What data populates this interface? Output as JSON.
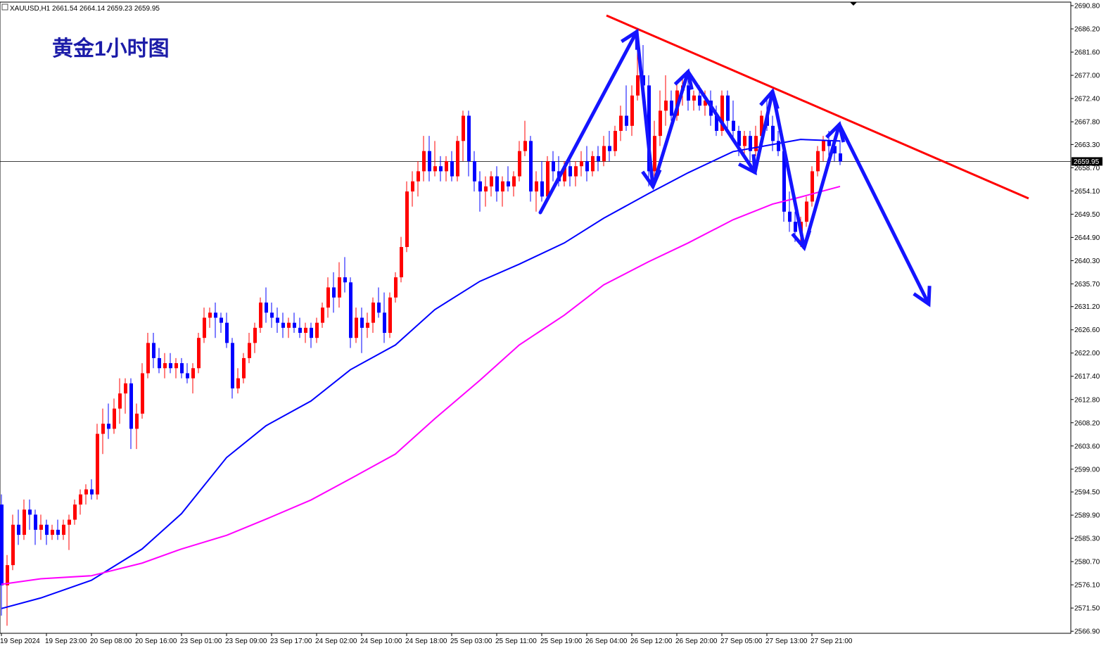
{
  "chart_data": {
    "type": "candlestick",
    "symbol": "XAUUSD,H1",
    "title": "黄金1小时图",
    "up_color": "#ff0000",
    "down_color": "#0000ff",
    "price_line": true,
    "ylim": [
      2566.5,
      2691.5
    ],
    "yticks": [
      {
        "value": 2690.8,
        "label": "2690.80"
      },
      {
        "value": 2686.2,
        "label": "2686.20"
      },
      {
        "value": 2681.6,
        "label": "2681.60"
      },
      {
        "value": 2677.0,
        "label": "2677.00"
      },
      {
        "value": 2672.4,
        "label": "2672.40"
      },
      {
        "value": 2667.8,
        "label": "2667.80"
      },
      {
        "value": 2663.3,
        "label": "2663.30"
      },
      {
        "value": 2658.7,
        "label": "2658.70"
      },
      {
        "value": 2654.1,
        "label": "2654.10"
      },
      {
        "value": 2649.5,
        "label": "2649.50"
      },
      {
        "value": 2644.9,
        "label": "2644.90"
      },
      {
        "value": 2640.3,
        "label": "2640.30"
      },
      {
        "value": 2635.7,
        "label": "2635.70"
      },
      {
        "value": 2631.2,
        "label": "2631.20"
      },
      {
        "value": 2626.6,
        "label": "2626.60"
      },
      {
        "value": 2622.0,
        "label": "2622.00"
      },
      {
        "value": 2617.4,
        "label": "2617.40"
      },
      {
        "value": 2612.8,
        "label": "2612.80"
      },
      {
        "value": 2608.2,
        "label": "2608.20"
      },
      {
        "value": 2603.6,
        "label": "2603.60"
      },
      {
        "value": 2599.0,
        "label": "2599.00"
      },
      {
        "value": 2594.5,
        "label": "2594.50"
      },
      {
        "value": 2589.9,
        "label": "2589.90"
      },
      {
        "value": 2585.3,
        "label": "2585.30"
      },
      {
        "value": 2580.7,
        "label": "2580.70"
      },
      {
        "value": 2576.1,
        "label": "2576.10"
      },
      {
        "value": 2571.5,
        "label": "2571.50"
      },
      {
        "value": 2566.9,
        "label": "2566.90"
      }
    ],
    "categories": [
      "19 Sep 2024",
      null,
      null,
      null,
      null,
      null,
      null,
      null,
      "19 Sep 23:00",
      null,
      null,
      null,
      null,
      null,
      null,
      null,
      "20 Sep 08:00",
      null,
      null,
      null,
      null,
      null,
      null,
      null,
      "20 Sep 16:00",
      null,
      null,
      null,
      null,
      null,
      null,
      null,
      "23 Sep 01:00",
      null,
      null,
      null,
      null,
      null,
      null,
      null,
      "23 Sep 09:00",
      null,
      null,
      null,
      null,
      null,
      null,
      null,
      "23 Sep 17:00",
      null,
      null,
      null,
      null,
      null,
      null,
      null,
      "24 Sep 02:00",
      null,
      null,
      null,
      null,
      null,
      null,
      null,
      "24 Sep 10:00",
      null,
      null,
      null,
      null,
      null,
      null,
      null,
      "24 Sep 18:00",
      null,
      null,
      null,
      null,
      null,
      null,
      null,
      "25 Sep 03:00",
      null,
      null,
      null,
      null,
      null,
      null,
      null,
      "25 Sep 11:00",
      null,
      null,
      null,
      null,
      null,
      null,
      null,
      "25 Sep 19:00",
      null,
      null,
      null,
      null,
      null,
      null,
      null,
      "26 Sep 04:00",
      null,
      null,
      null,
      null,
      null,
      null,
      null,
      "26 Sep 12:00",
      null,
      null,
      null,
      null,
      null,
      null,
      null,
      "26 Sep 20:00",
      null,
      null,
      null,
      null,
      null,
      null,
      null,
      "27 Sep 05:00",
      null,
      null,
      null,
      null,
      null,
      null,
      null,
      "27 Sep 13:00",
      null,
      null,
      null,
      null,
      null,
      null,
      null,
      "27 Sep 21:00",
      null,
      null,
      null,
      null,
      null
    ],
    "ohlc": [
      [
        2592,
        2594,
        2570,
        2576
      ],
      [
        2576,
        2582,
        2568,
        2580
      ],
      [
        2580,
        2590,
        2579,
        2588
      ],
      [
        2588,
        2591,
        2584,
        2586
      ],
      [
        2586,
        2593,
        2585,
        2591
      ],
      [
        2591,
        2593,
        2587,
        2590
      ],
      [
        2590,
        2591,
        2584,
        2587
      ],
      [
        2587,
        2590,
        2585,
        2588
      ],
      [
        2588,
        2589,
        2584,
        2586
      ],
      [
        2586,
        2588,
        2585,
        2587
      ],
      [
        2587,
        2589,
        2585,
        2586
      ],
      [
        2586,
        2589,
        2585,
        2588
      ],
      [
        2588,
        2590,
        2583,
        2589
      ],
      [
        2589,
        2593,
        2588,
        2592
      ],
      [
        2592,
        2595,
        2590,
        2594
      ],
      [
        2594,
        2596,
        2592,
        2595
      ],
      [
        2595,
        2597,
        2593,
        2594
      ],
      [
        2594,
        2608,
        2593,
        2606
      ],
      [
        2606,
        2611,
        2602,
        2608
      ],
      [
        2608,
        2612,
        2605,
        2607
      ],
      [
        2607,
        2613,
        2606,
        2611
      ],
      [
        2611,
        2617,
        2608,
        2614
      ],
      [
        2614,
        2617,
        2610,
        2616
      ],
      [
        2616,
        2617,
        2603,
        2607
      ],
      [
        2607,
        2612,
        2603,
        2610
      ],
      [
        2610,
        2620,
        2609,
        2618
      ],
      [
        2618,
        2626,
        2617,
        2624
      ],
      [
        2624,
        2626,
        2619,
        2621
      ],
      [
        2621,
        2623,
        2618,
        2619
      ],
      [
        2619,
        2622,
        2617,
        2620
      ],
      [
        2620,
        2622,
        2618,
        2619
      ],
      [
        2619,
        2621,
        2617,
        2620
      ],
      [
        2620,
        2621,
        2617,
        2618
      ],
      [
        2618,
        2620,
        2616,
        2617
      ],
      [
        2617,
        2620,
        2614,
        2619
      ],
      [
        2619,
        2626,
        2618,
        2625
      ],
      [
        2625,
        2631,
        2624,
        2629
      ],
      [
        2629,
        2631,
        2627,
        2630
      ],
      [
        2630,
        2632,
        2625,
        2629
      ],
      [
        2629,
        2630,
        2626,
        2628
      ],
      [
        2628,
        2630,
        2623,
        2624
      ],
      [
        2624,
        2625,
        2613,
        2615
      ],
      [
        2615,
        2619,
        2614,
        2617
      ],
      [
        2617,
        2622,
        2616,
        2621
      ],
      [
        2621,
        2626,
        2620,
        2624
      ],
      [
        2624,
        2628,
        2622,
        2627
      ],
      [
        2627,
        2633,
        2626,
        2632
      ],
      [
        2632,
        2635,
        2628,
        2630
      ],
      [
        2630,
        2632,
        2627,
        2629
      ],
      [
        2629,
        2631,
        2626,
        2628
      ],
      [
        2628,
        2630,
        2625,
        2627
      ],
      [
        2627,
        2629,
        2625,
        2628
      ],
      [
        2628,
        2630,
        2626,
        2627
      ],
      [
        2627,
        2629,
        2625,
        2626
      ],
      [
        2626,
        2628,
        2624,
        2627
      ],
      [
        2627,
        2628,
        2623,
        2625
      ],
      [
        2625,
        2629,
        2624,
        2628
      ],
      [
        2628,
        2632,
        2627,
        2631
      ],
      [
        2631,
        2637,
        2629,
        2635
      ],
      [
        2635,
        2638,
        2630,
        2633
      ],
      [
        2633,
        2640,
        2631,
        2637
      ],
      [
        2637,
        2641,
        2634,
        2636
      ],
      [
        2636,
        2637,
        2623,
        2625
      ],
      [
        2625,
        2631,
        2624,
        2629
      ],
      [
        2629,
        2631,
        2622,
        2627
      ],
      [
        2627,
        2630,
        2625,
        2628
      ],
      [
        2628,
        2633,
        2626,
        2632
      ],
      [
        2632,
        2635,
        2629,
        2630
      ],
      [
        2630,
        2634,
        2624,
        2626
      ],
      [
        2626,
        2634,
        2625,
        2633
      ],
      [
        2633,
        2638,
        2632,
        2637
      ],
      [
        2637,
        2645,
        2636,
        2643
      ],
      [
        2643,
        2656,
        2642,
        2654
      ],
      [
        2654,
        2658,
        2651,
        2656
      ],
      [
        2656,
        2660,
        2653,
        2658
      ],
      [
        2658,
        2665,
        2656,
        2662
      ],
      [
        2662,
        2665,
        2656,
        2658
      ],
      [
        2658,
        2664,
        2657,
        2659
      ],
      [
        2659,
        2661,
        2656,
        2658
      ],
      [
        2658,
        2661,
        2656,
        2660
      ],
      [
        2660,
        2662,
        2656,
        2657
      ],
      [
        2657,
        2665,
        2656,
        2664
      ],
      [
        2664,
        2670,
        2660,
        2669
      ],
      [
        2669,
        2670,
        2657,
        2660
      ],
      [
        2660,
        2662,
        2654,
        2656
      ],
      [
        2656,
        2658,
        2650,
        2654
      ],
      [
        2654,
        2657,
        2651,
        2655
      ],
      [
        2655,
        2658,
        2653,
        2657
      ],
      [
        2657,
        2659,
        2652,
        2654
      ],
      [
        2654,
        2657,
        2651,
        2656
      ],
      [
        2656,
        2659,
        2654,
        2655
      ],
      [
        2655,
        2658,
        2653,
        2657
      ],
      [
        2657,
        2664,
        2656,
        2662
      ],
      [
        2662,
        2668,
        2661,
        2664
      ],
      [
        2664,
        2665,
        2652,
        2654
      ],
      [
        2654,
        2658,
        2650,
        2656
      ],
      [
        2656,
        2660,
        2652,
        2653
      ],
      [
        2653,
        2661,
        2652,
        2660
      ],
      [
        2660,
        2662,
        2656,
        2658
      ],
      [
        2658,
        2661,
        2655,
        2656
      ],
      [
        2656,
        2660,
        2655,
        2659
      ],
      [
        2659,
        2661,
        2655,
        2657
      ],
      [
        2657,
        2660,
        2655,
        2659
      ],
      [
        2659,
        2662,
        2657,
        2660
      ],
      [
        2660,
        2663,
        2656,
        2658
      ],
      [
        2658,
        2662,
        2657,
        2661
      ],
      [
        2661,
        2663,
        2658,
        2660
      ],
      [
        2660,
        2665,
        2659,
        2663
      ],
      [
        2663,
        2666,
        2660,
        2662
      ],
      [
        2662,
        2667,
        2661,
        2666
      ],
      [
        2666,
        2671,
        2664,
        2669
      ],
      [
        2669,
        2675,
        2666,
        2667
      ],
      [
        2667,
        2675,
        2665,
        2673
      ],
      [
        2673,
        2686,
        2672,
        2677
      ],
      [
        2677,
        2683,
        2672,
        2675
      ],
      [
        2675,
        2677,
        2655,
        2658
      ],
      [
        2658,
        2668,
        2656,
        2665
      ],
      [
        2665,
        2674,
        2663,
        2670
      ],
      [
        2670,
        2677,
        2667,
        2672
      ],
      [
        2672,
        2674,
        2668,
        2669
      ],
      [
        2669,
        2676,
        2668,
        2674
      ],
      [
        2674,
        2677,
        2671,
        2675
      ],
      [
        2675,
        2677,
        2670,
        2672
      ],
      [
        2672,
        2674,
        2670,
        2673
      ],
      [
        2673,
        2675,
        2670,
        2671
      ],
      [
        2671,
        2674,
        2669,
        2672
      ],
      [
        2672,
        2674,
        2667,
        2669
      ],
      [
        2669,
        2671,
        2665,
        2666
      ],
      [
        2666,
        2674,
        2665,
        2673
      ],
      [
        2673,
        2674,
        2666,
        2668
      ],
      [
        2668,
        2672,
        2664,
        2666
      ],
      [
        2666,
        2667,
        2661,
        2663
      ],
      [
        2663,
        2666,
        2661,
        2665
      ],
      [
        2665,
        2666,
        2660,
        2662
      ],
      [
        2662,
        2667,
        2661,
        2665
      ],
      [
        2665,
        2670,
        2664,
        2669
      ],
      [
        2669,
        2673,
        2666,
        2667
      ],
      [
        2667,
        2669,
        2662,
        2664
      ],
      [
        2664,
        2666,
        2661,
        2662
      ],
      [
        2662,
        2663,
        2648,
        2650
      ],
      [
        2650,
        2654,
        2646,
        2648
      ],
      [
        2648,
        2650,
        2644,
        2646
      ],
      [
        2646,
        2649,
        2643,
        2648
      ],
      [
        2648,
        2653,
        2647,
        2652
      ],
      [
        2652,
        2659,
        2651,
        2658
      ],
      [
        2658,
        2663,
        2657,
        2662
      ],
      [
        2662,
        2665,
        2660,
        2664
      ],
      [
        2664,
        2666,
        2661,
        2663
      ],
      [
        2663,
        2665,
        2660,
        2661.54
      ],
      [
        2661.54,
        2664.14,
        2659.23,
        2659.95
      ]
    ],
    "series": [
      {
        "color": "#0000ff",
        "x": [
          0,
          7,
          16,
          25,
          32,
          40,
          47,
          55,
          62,
          70,
          77,
          85,
          92,
          100,
          107,
          115,
          122,
          130,
          137,
          142,
          149
        ],
        "values": [
          2571.4,
          2573.5,
          2577.0,
          2583.2,
          2590.2,
          2601.3,
          2607.6,
          2612.5,
          2618.7,
          2623.6,
          2630.6,
          2636.2,
          2639.6,
          2643.8,
          2648.7,
          2653.6,
          2657.7,
          2661.9,
          2663.3,
          2664.3,
          2664.0
        ]
      },
      {
        "color": "#ff00ff",
        "x": [
          0,
          7,
          16,
          25,
          32,
          40,
          47,
          55,
          62,
          70,
          77,
          85,
          92,
          100,
          107,
          115,
          122,
          130,
          137,
          142,
          149
        ],
        "values": [
          2576.2,
          2577.3,
          2577.9,
          2580.4,
          2583.2,
          2585.9,
          2589.1,
          2592.9,
          2597.1,
          2602.0,
          2609.0,
          2616.6,
          2623.6,
          2629.5,
          2635.5,
          2640.1,
          2643.8,
          2648.4,
          2651.5,
          2652.9,
          2655.0
        ]
      }
    ]
  }
}
